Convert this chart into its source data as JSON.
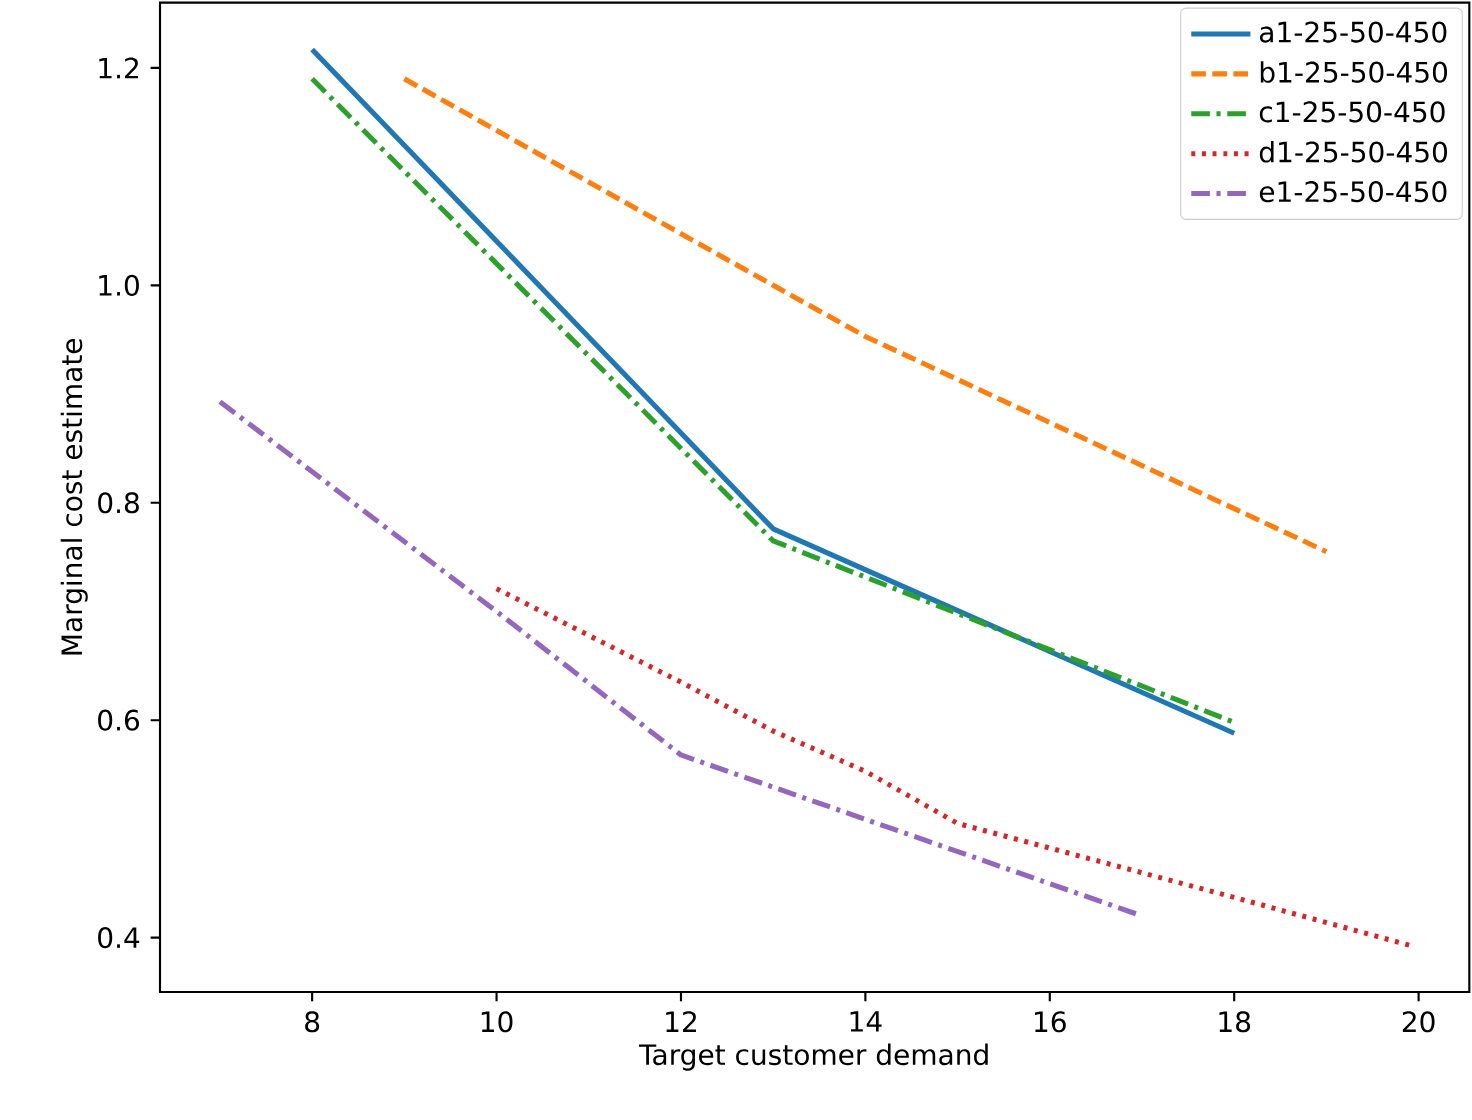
{
  "chart_data": {
    "type": "line",
    "xlabel": "Target customer demand",
    "ylabel": "Marginal cost estimate",
    "xlim": [
      6.35,
      20.55
    ],
    "ylim": [
      0.35,
      1.26
    ],
    "xticks": [
      8,
      10,
      12,
      14,
      16,
      18,
      20
    ],
    "yticks": [
      0.4,
      0.6,
      0.8,
      {
        "value": 1.0,
        "label": "1.0"
      },
      1.2
    ],
    "legend": "top right",
    "grid": false,
    "series": [
      {
        "name": "a1-25-50-450",
        "color": "#1f77b4",
        "line_style": "solid",
        "x": [
          8,
          13,
          18
        ],
        "values": [
          1.217,
          0.776,
          0.588
        ]
      },
      {
        "name": "b1-25-50-450",
        "color": "#ff7f0e",
        "line_style": "dashed",
        "x": [
          9,
          13,
          14,
          19
        ],
        "values": [
          1.19,
          1.0,
          0.953,
          0.755
        ]
      },
      {
        "name": "c1-25-50-450",
        "color": "#2ca02c",
        "line_style": "dashdot",
        "x": [
          8,
          13,
          18
        ],
        "values": [
          1.19,
          0.765,
          0.598
        ]
      },
      {
        "name": "d1-25-50-450",
        "color": "#d62728",
        "line_style": "dotted",
        "x": [
          10,
          12,
          13,
          14,
          15,
          18,
          19.9
        ],
        "values": [
          0.721,
          0.635,
          0.59,
          0.553,
          0.505,
          0.437,
          0.393
        ]
      },
      {
        "name": "e1-25-50-450",
        "color": "#9467bd",
        "line_style": "dashdot",
        "x": [
          7,
          10,
          12,
          17
        ],
        "values": [
          0.893,
          0.7,
          0.568,
          0.42
        ]
      }
    ]
  }
}
